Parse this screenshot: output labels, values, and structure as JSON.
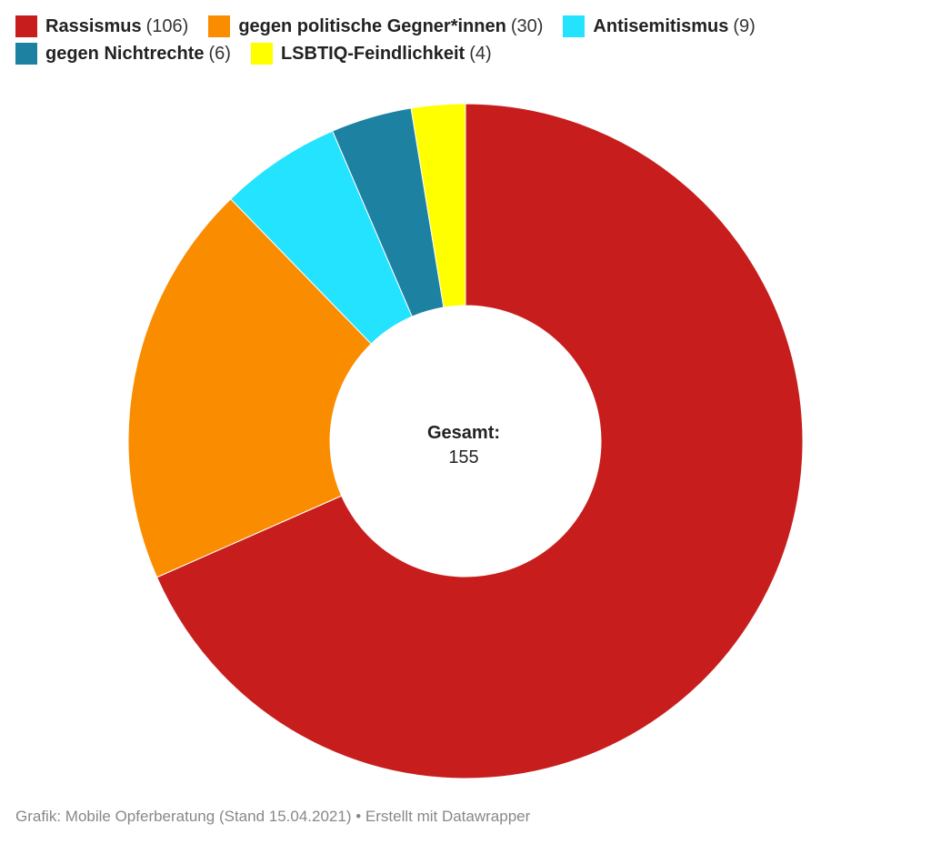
{
  "chart_data": {
    "type": "pie",
    "series": [
      {
        "name": "Rassismus",
        "value": 106,
        "color": "#c71e1d"
      },
      {
        "name": "gegen politische Gegner*innen",
        "value": 30,
        "color": "#fa8c00"
      },
      {
        "name": "Antisemitismus",
        "value": 9,
        "color": "#23e3ff"
      },
      {
        "name": "gegen Nichtrechte",
        "value": 6,
        "color": "#1d81a2"
      },
      {
        "name": "LSBTIQ-Feindlichkeit",
        "value": 4,
        "color": "#ffff00"
      }
    ],
    "center_label": "Gesamt:",
    "center_value": "155",
    "legend_position": "top"
  },
  "footer": "Grafik: Mobile Opferberatung (Stand 15.04.2021) • Erstellt mit Datawrapper"
}
